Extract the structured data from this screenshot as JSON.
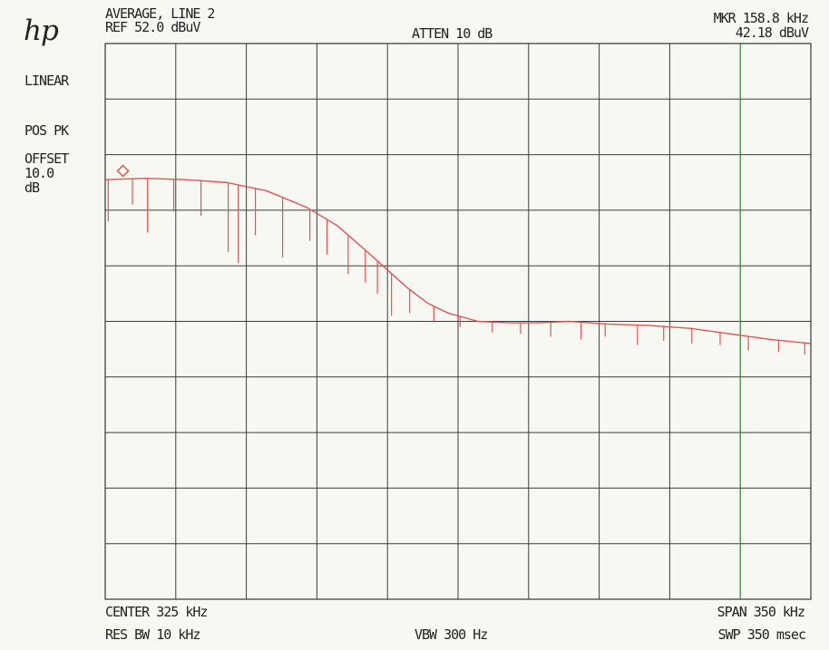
{
  "header": {
    "logo_text": "hp",
    "mode_line": "AVERAGE, LINE 2",
    "ref_line": "REF  52.0 dBuV",
    "atten": "ATTEN 10 dB",
    "mkr_freq": "MKR 158.8 kHz",
    "mkr_level": "42.18 dBuV"
  },
  "sidebar": {
    "scale": "LINEAR",
    "detector": "POS PK",
    "offset_lines": [
      "OFFSET",
      "10.0",
      "dB"
    ]
  },
  "footer": {
    "center": "CENTER 325 kHz",
    "span": "SPAN 350 kHz",
    "res_bw": "RES BW 10 kHz",
    "vbw": "VBW 300  Hz",
    "sweep": "SWP 350 msec"
  },
  "colors": {
    "trace": "#e25353",
    "grid": "#3c3c3c",
    "marker": "#3d8f3d"
  },
  "chart_data": {
    "type": "line",
    "x_unit": "kHz",
    "y_unit": "dBuV",
    "xlim": [
      150,
      500
    ],
    "ylim": [
      12,
      52
    ],
    "grid": true,
    "series": [
      {
        "x": [
          150,
          170,
          190,
          210,
          230,
          250,
          265,
          280,
          290,
          300,
          310,
          320,
          335,
          350,
          365,
          380,
          400,
          420,
          440,
          460,
          480,
          500
        ],
        "y": [
          42.2,
          42.3,
          42.2,
          42.0,
          41.4,
          40.2,
          38.9,
          37.0,
          35.7,
          34.4,
          33.3,
          32.6,
          32.0,
          31.9,
          31.9,
          32.0,
          31.8,
          31.7,
          31.5,
          31.1,
          30.7,
          30.4
        ]
      }
    ],
    "spikes": [
      {
        "x": 151.5,
        "y": 39.2
      },
      {
        "x": 163.5,
        "y": 40.4
      },
      {
        "x": 171,
        "y": 38.4
      },
      {
        "x": 184,
        "y": 39.9
      },
      {
        "x": 197.5,
        "y": 39.6
      },
      {
        "x": 211,
        "y": 37.0
      },
      {
        "x": 216,
        "y": 36.2
      },
      {
        "x": 224.5,
        "y": 38.2
      },
      {
        "x": 238,
        "y": 36.6
      },
      {
        "x": 251.5,
        "y": 37.8
      },
      {
        "x": 260,
        "y": 36.8
      },
      {
        "x": 270.5,
        "y": 35.4
      },
      {
        "x": 279,
        "y": 34.8
      },
      {
        "x": 285,
        "y": 34.0
      },
      {
        "x": 292,
        "y": 32.4
      },
      {
        "x": 301,
        "y": 32.6
      },
      {
        "x": 313,
        "y": 32.0
      },
      {
        "x": 326,
        "y": 31.6
      },
      {
        "x": 342,
        "y": 31.2
      },
      {
        "x": 356,
        "y": 31.1
      },
      {
        "x": 371,
        "y": 30.9
      },
      {
        "x": 386,
        "y": 30.7
      },
      {
        "x": 398,
        "y": 30.9
      },
      {
        "x": 414,
        "y": 30.3
      },
      {
        "x": 427,
        "y": 30.6
      },
      {
        "x": 441,
        "y": 30.4
      },
      {
        "x": 455,
        "y": 30.3
      },
      {
        "x": 469,
        "y": 29.9
      },
      {
        "x": 484,
        "y": 29.8
      },
      {
        "x": 497,
        "y": 29.6
      }
    ],
    "marker": {
      "x": 158.8,
      "y": 42.18
    },
    "marker_line_x": 465
  }
}
